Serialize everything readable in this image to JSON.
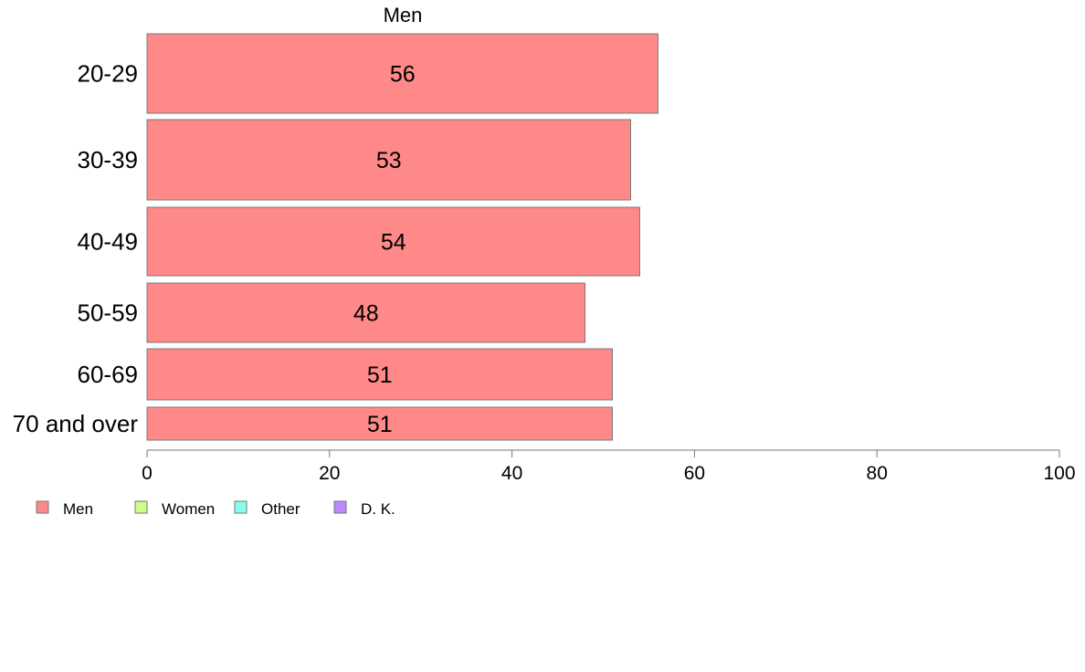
{
  "chart_data": {
    "type": "bar",
    "orientation": "horizontal",
    "panel_title": "Men",
    "categories": [
      "20-29",
      "30-39",
      "40-49",
      "50-59",
      "60-69",
      "70 and over"
    ],
    "series": [
      {
        "name": "Men",
        "values": [
          56,
          53,
          54,
          48,
          51,
          51
        ],
        "labels": [
          "56",
          "53",
          "54",
          "48",
          "51",
          "51"
        ]
      }
    ],
    "xlim": [
      0,
      100
    ],
    "xticks": [
      0,
      20,
      40,
      60,
      80,
      100
    ],
    "xtick_labels": [
      "0",
      "20",
      "40",
      "60",
      "80",
      "100"
    ],
    "grid": false,
    "legend": {
      "position": "bottom-left",
      "entries": [
        {
          "label": "Men",
          "color": "#ff8888"
        },
        {
          "label": "Women",
          "color": "#ccff88"
        },
        {
          "label": "Other",
          "color": "#88ffee"
        },
        {
          "label": "D. K.",
          "color": "#bb88ff"
        }
      ]
    },
    "colors": {
      "bar_fill": "#ff8888",
      "bar_stroke": "#777777",
      "axis": "#777777"
    }
  }
}
